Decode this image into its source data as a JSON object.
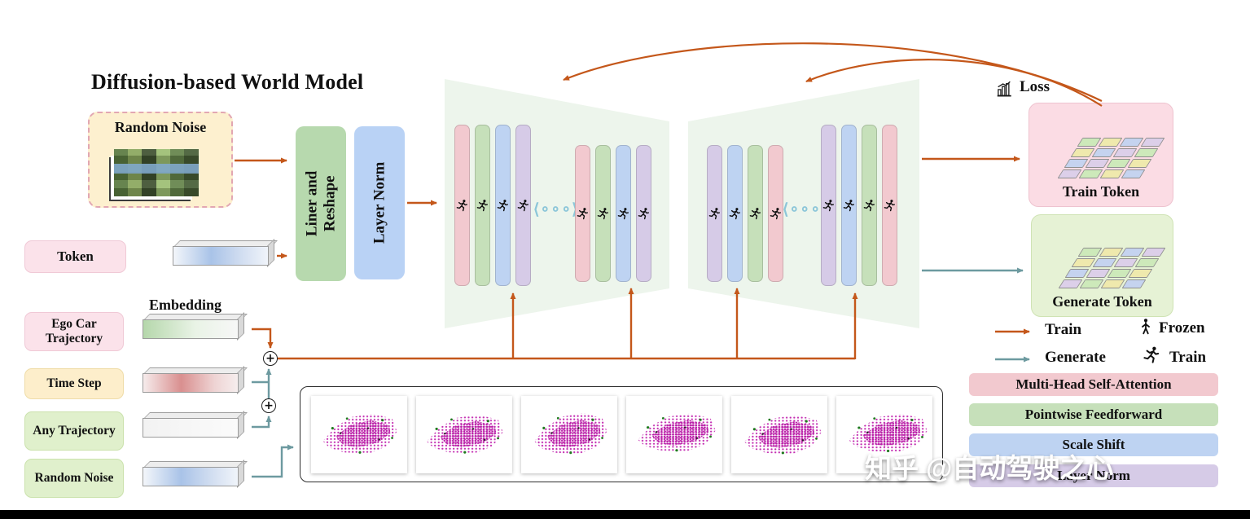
{
  "title": "Diffusion-based World Model",
  "colors": {
    "train_arrow": "#c4571a",
    "generate_arrow": "#6d9aa0",
    "attention": "#f2c9cf",
    "feedforward": "#c6e0ba",
    "scale_shift": "#bed3f2",
    "layer_norm": "#d6cbe7",
    "train_token_bg": "#fbdce4",
    "generate_token_bg": "#e6f2d5"
  },
  "inputs": {
    "random_noise": "Random Noise",
    "token": "Token",
    "ego": "Ego Car Trajectory",
    "time_step": "Time Step",
    "any_traj": "Any Trajectory",
    "random_noise2": "Random Noise"
  },
  "embedding_label": "Embedding",
  "pre": {
    "liner1": "Liner and",
    "liner2": "Reshape",
    "layer_norm": "Layer Norm"
  },
  "dots": "⟨∘∘∘⟩",
  "outputs": {
    "loss": "Loss",
    "train_token": "Train Token",
    "generate_token": "Generate Token"
  },
  "legend": {
    "train": "Train",
    "frozen": "Frozen",
    "generate": "Generate",
    "train_runner": "Train",
    "bars": [
      "Multi-Head Self-Attention",
      "Pointwise Feedforward",
      "Scale Shift",
      "Layer Norm"
    ]
  },
  "watermark": "知乎 @自动驾驶之心",
  "cube_palette": [
    "#cde9ba",
    "#efe9ad",
    "#c5d3ef",
    "#dccfe9"
  ]
}
